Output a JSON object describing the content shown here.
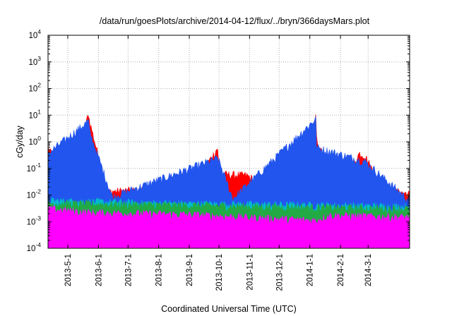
{
  "chart_data": {
    "type": "area",
    "title": "/data/run/goesPlots/archive/2014-04-12/flux/../bryn/366daysMars.plot",
    "xlabel": "Coordinated Universal Time (UTC)",
    "ylabel": "cGy/day",
    "y_scale": "log",
    "ylim": [
      0.0001,
      10000
    ],
    "xlim": [
      "2013-04-11",
      "2014-04-12"
    ],
    "grid": true,
    "legend": "none",
    "y_ticks": [
      {
        "value": 0.0001,
        "base": "10",
        "exp": "-4"
      },
      {
        "value": 0.001,
        "base": "10",
        "exp": "-3"
      },
      {
        "value": 0.01,
        "base": "10",
        "exp": "-2"
      },
      {
        "value": 0.1,
        "base": "10",
        "exp": "-1"
      },
      {
        "value": 1,
        "base": "10",
        "exp": "0"
      },
      {
        "value": 10,
        "base": "10",
        "exp": "1"
      },
      {
        "value": 100,
        "base": "10",
        "exp": "2"
      },
      {
        "value": 1000,
        "base": "10",
        "exp": "3"
      },
      {
        "value": 10000,
        "base": "10",
        "exp": "4"
      }
    ],
    "x_ticks": [
      "2013-5-1",
      "2013-6-1",
      "2013-7-1",
      "2013-8-1",
      "2013-9-1",
      "2013-10-1",
      "2013-11-1",
      "2013-12-1",
      "2014-1-1",
      "2014-2-1",
      "2014-3-1"
    ],
    "series_colors": [
      "#ff0000",
      "#2255ee",
      "#00bbcc",
      "#22aa44",
      "#ff00ff"
    ],
    "series": [
      {
        "color": "#ff0000",
        "x": [
          "2013-04-11",
          "2013-05-04",
          "2013-05-22",
          "2013-05-23",
          "2013-06-10",
          "2013-07-20",
          "2013-09-01",
          "2013-09-30",
          "2013-10-01",
          "2013-10-29",
          "2013-11-03",
          "2013-12-01",
          "2013-12-28",
          "2014-01-07",
          "2014-01-08",
          "2014-01-30",
          "2014-02-20",
          "2014-02-26",
          "2014-03-15",
          "2014-04-12"
        ],
        "values": [
          0.5,
          0.012,
          10,
          5,
          0.011,
          0.013,
          0.012,
          0.5,
          0.05,
          0.045,
          0.035,
          0.011,
          0.15,
          12,
          0.8,
          0.012,
          0.3,
          0.25,
          0.013,
          0.009
        ]
      },
      {
        "color": "#2255ee",
        "x": [
          "2013-04-11",
          "2013-05-22",
          "2013-05-23",
          "2013-06-15",
          "2013-09-30",
          "2013-10-15",
          "2014-01-07",
          "2014-01-08",
          "2014-02-26",
          "2014-04-12"
        ],
        "values": [
          0.3,
          5,
          2,
          0.007,
          0.2,
          0.006,
          6,
          0.5,
          0.15,
          0.005
        ]
      },
      {
        "color": "#00bbcc",
        "x": [
          "2013-04-11",
          "2013-08-01",
          "2014-04-12"
        ],
        "values": [
          0.005,
          0.004,
          0.003
        ]
      },
      {
        "color": "#22aa44",
        "x": [
          "2013-04-11",
          "2013-08-01",
          "2014-04-12"
        ],
        "values": [
          0.004,
          0.0035,
          0.0025
        ]
      },
      {
        "color": "#ff00ff",
        "x": [
          "2013-04-11",
          "2013-05-22",
          "2013-09-01",
          "2014-01-07",
          "2014-01-20",
          "2014-04-12"
        ],
        "values": [
          0.0025,
          0.0018,
          0.0015,
          0.0009,
          0.0014,
          0.0012
        ]
      }
    ]
  }
}
